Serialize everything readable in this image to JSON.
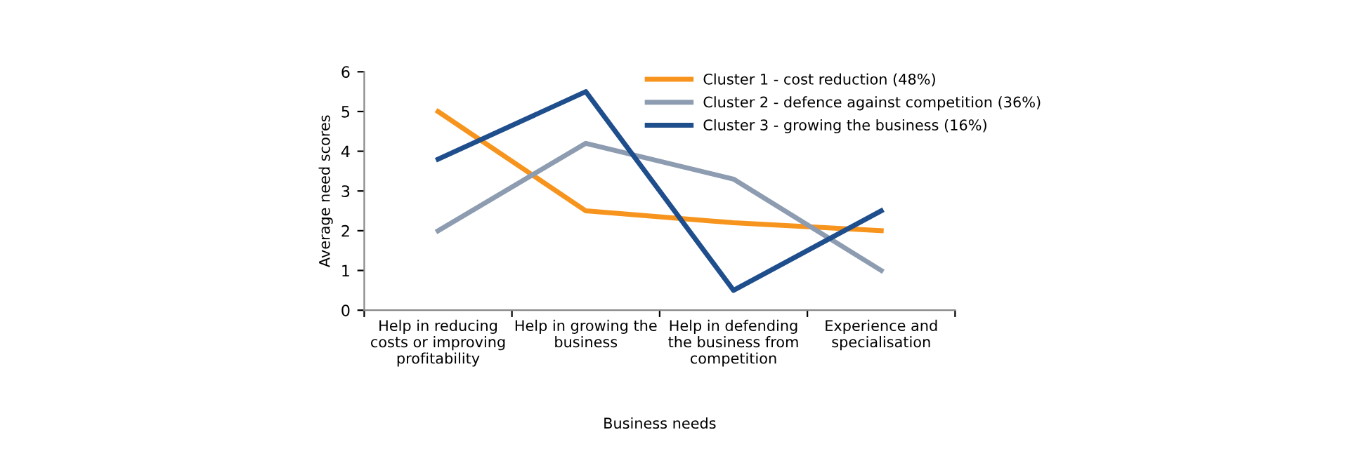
{
  "chart_data": {
    "type": "line",
    "xlabel": "Business needs",
    "ylabel": "Average need scores",
    "categories": [
      "Help in reducing\ncosts or improving\nprofitability",
      "Help in growing the\nbusiness",
      "Help in defending\nthe business from\ncompetition",
      "Experience and\nspecialisation"
    ],
    "series": [
      {
        "name": "Cluster 1 - cost reduction (48%)",
        "color": "#f7941d",
        "values": [
          5,
          2.5,
          2.2,
          2
        ]
      },
      {
        "name": "Cluster 2 - defence against competition (36%)",
        "color": "#8d9cb0",
        "values": [
          2,
          4.2,
          3.3,
          1
        ]
      },
      {
        "name": "Cluster 3 - growing the business (16%)",
        "color": "#1f4e8c",
        "values": [
          3.8,
          5.5,
          0.5,
          2.5
        ]
      }
    ],
    "ylim": [
      0,
      6
    ],
    "yticks": [
      0,
      1,
      2,
      3,
      4,
      5,
      6
    ],
    "grid": false,
    "legend": "top right",
    "marker": "none",
    "line_style": "solid"
  }
}
